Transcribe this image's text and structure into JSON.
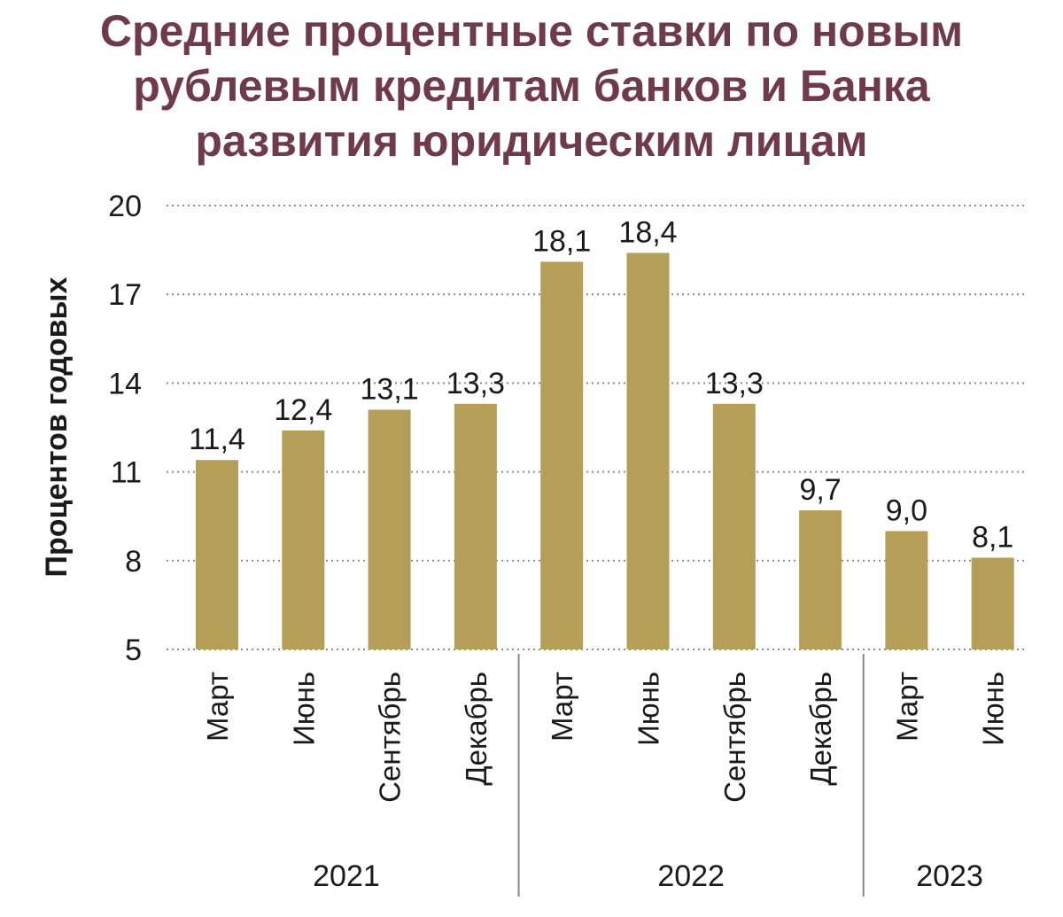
{
  "chart_data": {
    "type": "bar",
    "title_lines": [
      "Средние процентные ставки по новым",
      "рублевым кредитам банков и Банка",
      "развития юридическим лицам"
    ],
    "ylabel": "Процентов годовых",
    "ylim": [
      5,
      20
    ],
    "yticks": [
      5,
      8,
      11,
      14,
      17,
      20
    ],
    "ytick_labels": [
      "5",
      "8",
      "11",
      "14",
      "17",
      "20"
    ],
    "grid": "dotted horizontal",
    "bar_color": "#b59f58",
    "categories": [
      "Март",
      "Июнь",
      "Сентябрь",
      "Декабрь",
      "Март",
      "Июнь",
      "Сентябрь",
      "Декабрь",
      "Март",
      "Июнь"
    ],
    "values": [
      11.4,
      12.4,
      13.1,
      13.3,
      18.1,
      18.4,
      13.3,
      9.7,
      9.0,
      8.1
    ],
    "value_labels": [
      "11,4",
      "12,4",
      "13,1",
      "13,3",
      "18,1",
      "18,4",
      "13,3",
      "9,7",
      "9,0",
      "8,1"
    ],
    "groups": [
      {
        "label": "2021",
        "start": 0,
        "end": 3
      },
      {
        "label": "2022",
        "start": 4,
        "end": 7
      },
      {
        "label": "2023",
        "start": 8,
        "end": 9
      }
    ]
  }
}
